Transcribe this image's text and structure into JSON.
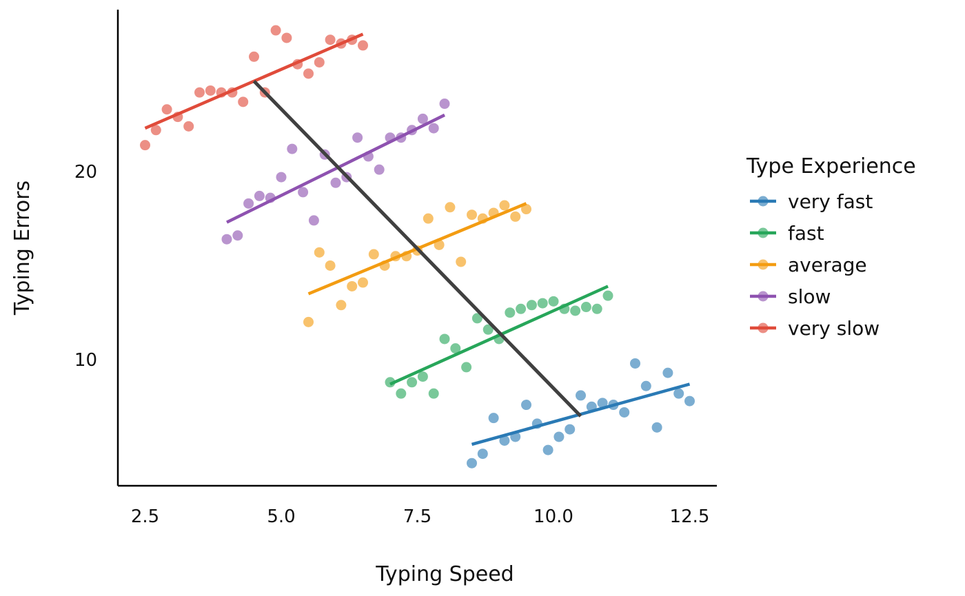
{
  "chart_data": {
    "type": "scatter",
    "xlabel": "Typing Speed",
    "ylabel": "Typing Errors",
    "xlim": [
      2.0,
      13.0
    ],
    "ylim": [
      3.3,
      28.6
    ],
    "xticks": [
      2.5,
      5.0,
      7.5,
      10.0,
      12.5
    ],
    "xtick_labels": [
      "2.5",
      "5.0",
      "7.5",
      "10.0",
      "12.5"
    ],
    "yticks": [
      10,
      20
    ],
    "ytick_labels": [
      "10",
      "20"
    ],
    "grid": false,
    "legend": {
      "title": "Type Experience",
      "placement": "right"
    },
    "series": [
      {
        "name": "very fast",
        "color": "#2a7ab5",
        "points": [
          [
            8.5,
            4.5
          ],
          [
            8.7,
            5.0
          ],
          [
            8.9,
            6.9
          ],
          [
            9.1,
            5.7
          ],
          [
            9.3,
            5.9
          ],
          [
            9.5,
            7.6
          ],
          [
            9.7,
            6.6
          ],
          [
            9.9,
            5.2
          ],
          [
            10.1,
            5.9
          ],
          [
            10.3,
            6.3
          ],
          [
            10.5,
            8.1
          ],
          [
            10.7,
            7.5
          ],
          [
            10.9,
            7.7
          ],
          [
            11.1,
            7.6
          ],
          [
            11.3,
            7.2
          ],
          [
            11.5,
            9.8
          ],
          [
            11.7,
            8.6
          ],
          [
            11.9,
            6.4
          ],
          [
            12.1,
            9.3
          ],
          [
            12.3,
            8.2
          ],
          [
            12.5,
            7.8
          ]
        ],
        "fit": [
          [
            8.5,
            5.5
          ],
          [
            12.5,
            8.7
          ]
        ]
      },
      {
        "name": "fast",
        "color": "#27a65a",
        "points": [
          [
            7.0,
            8.8
          ],
          [
            7.2,
            8.2
          ],
          [
            7.4,
            8.8
          ],
          [
            7.6,
            9.1
          ],
          [
            7.8,
            8.2
          ],
          [
            8.0,
            11.1
          ],
          [
            8.2,
            10.6
          ],
          [
            8.4,
            9.6
          ],
          [
            8.6,
            12.2
          ],
          [
            8.8,
            11.6
          ],
          [
            9.0,
            11.1
          ],
          [
            9.2,
            12.5
          ],
          [
            9.4,
            12.7
          ],
          [
            9.6,
            12.9
          ],
          [
            9.8,
            13.0
          ],
          [
            10.0,
            13.1
          ],
          [
            10.2,
            12.7
          ],
          [
            10.4,
            12.6
          ],
          [
            10.6,
            12.8
          ],
          [
            10.8,
            12.7
          ],
          [
            11.0,
            13.4
          ]
        ],
        "fit": [
          [
            7.0,
            8.7
          ],
          [
            11.0,
            13.9
          ]
        ]
      },
      {
        "name": "average",
        "color": "#f39c12",
        "points": [
          [
            5.5,
            12.0
          ],
          [
            5.7,
            15.7
          ],
          [
            5.9,
            15.0
          ],
          [
            6.1,
            12.9
          ],
          [
            6.3,
            13.9
          ],
          [
            6.5,
            14.1
          ],
          [
            6.7,
            15.6
          ],
          [
            6.9,
            15.0
          ],
          [
            7.1,
            15.5
          ],
          [
            7.3,
            15.5
          ],
          [
            7.5,
            15.8
          ],
          [
            7.7,
            17.5
          ],
          [
            7.9,
            16.1
          ],
          [
            8.1,
            18.1
          ],
          [
            8.3,
            15.2
          ],
          [
            8.5,
            17.7
          ],
          [
            8.7,
            17.5
          ],
          [
            8.9,
            17.8
          ],
          [
            9.1,
            18.2
          ],
          [
            9.3,
            17.6
          ],
          [
            9.5,
            18.0
          ]
        ],
        "fit": [
          [
            5.5,
            13.5
          ],
          [
            9.5,
            18.3
          ]
        ]
      },
      {
        "name": "slow",
        "color": "#8e52b0",
        "points": [
          [
            4.0,
            16.4
          ],
          [
            4.2,
            16.6
          ],
          [
            4.4,
            18.3
          ],
          [
            4.6,
            18.7
          ],
          [
            4.8,
            18.6
          ],
          [
            5.0,
            19.7
          ],
          [
            5.2,
            21.2
          ],
          [
            5.4,
            18.9
          ],
          [
            5.6,
            17.4
          ],
          [
            5.8,
            20.9
          ],
          [
            6.0,
            19.4
          ],
          [
            6.2,
            19.7
          ],
          [
            6.4,
            21.8
          ],
          [
            6.6,
            20.8
          ],
          [
            6.8,
            20.1
          ],
          [
            7.0,
            21.8
          ],
          [
            7.2,
            21.8
          ],
          [
            7.4,
            22.2
          ],
          [
            7.6,
            22.8
          ],
          [
            7.8,
            22.3
          ],
          [
            8.0,
            23.6
          ]
        ],
        "fit": [
          [
            4.0,
            17.3
          ],
          [
            8.0,
            23.0
          ]
        ]
      },
      {
        "name": "very slow",
        "color": "#e04b3a",
        "points": [
          [
            2.5,
            21.4
          ],
          [
            2.7,
            22.2
          ],
          [
            2.9,
            23.3
          ],
          [
            3.1,
            22.9
          ],
          [
            3.3,
            22.4
          ],
          [
            3.5,
            24.2
          ],
          [
            3.7,
            24.3
          ],
          [
            3.9,
            24.2
          ],
          [
            4.1,
            24.2
          ],
          [
            4.3,
            23.7
          ],
          [
            4.5,
            26.1
          ],
          [
            4.7,
            24.2
          ],
          [
            4.9,
            27.5
          ],
          [
            5.1,
            27.1
          ],
          [
            5.3,
            25.7
          ],
          [
            5.5,
            25.2
          ],
          [
            5.7,
            25.8
          ],
          [
            5.9,
            27.0
          ],
          [
            6.1,
            26.8
          ],
          [
            6.3,
            27.0
          ],
          [
            6.5,
            26.7
          ]
        ],
        "fit": [
          [
            2.5,
            22.3
          ],
          [
            6.5,
            27.3
          ]
        ]
      }
    ],
    "overall_line": {
      "color": "#404040",
      "points": [
        [
          4.5,
          24.8
        ],
        [
          10.5,
          7.0
        ]
      ]
    }
  }
}
